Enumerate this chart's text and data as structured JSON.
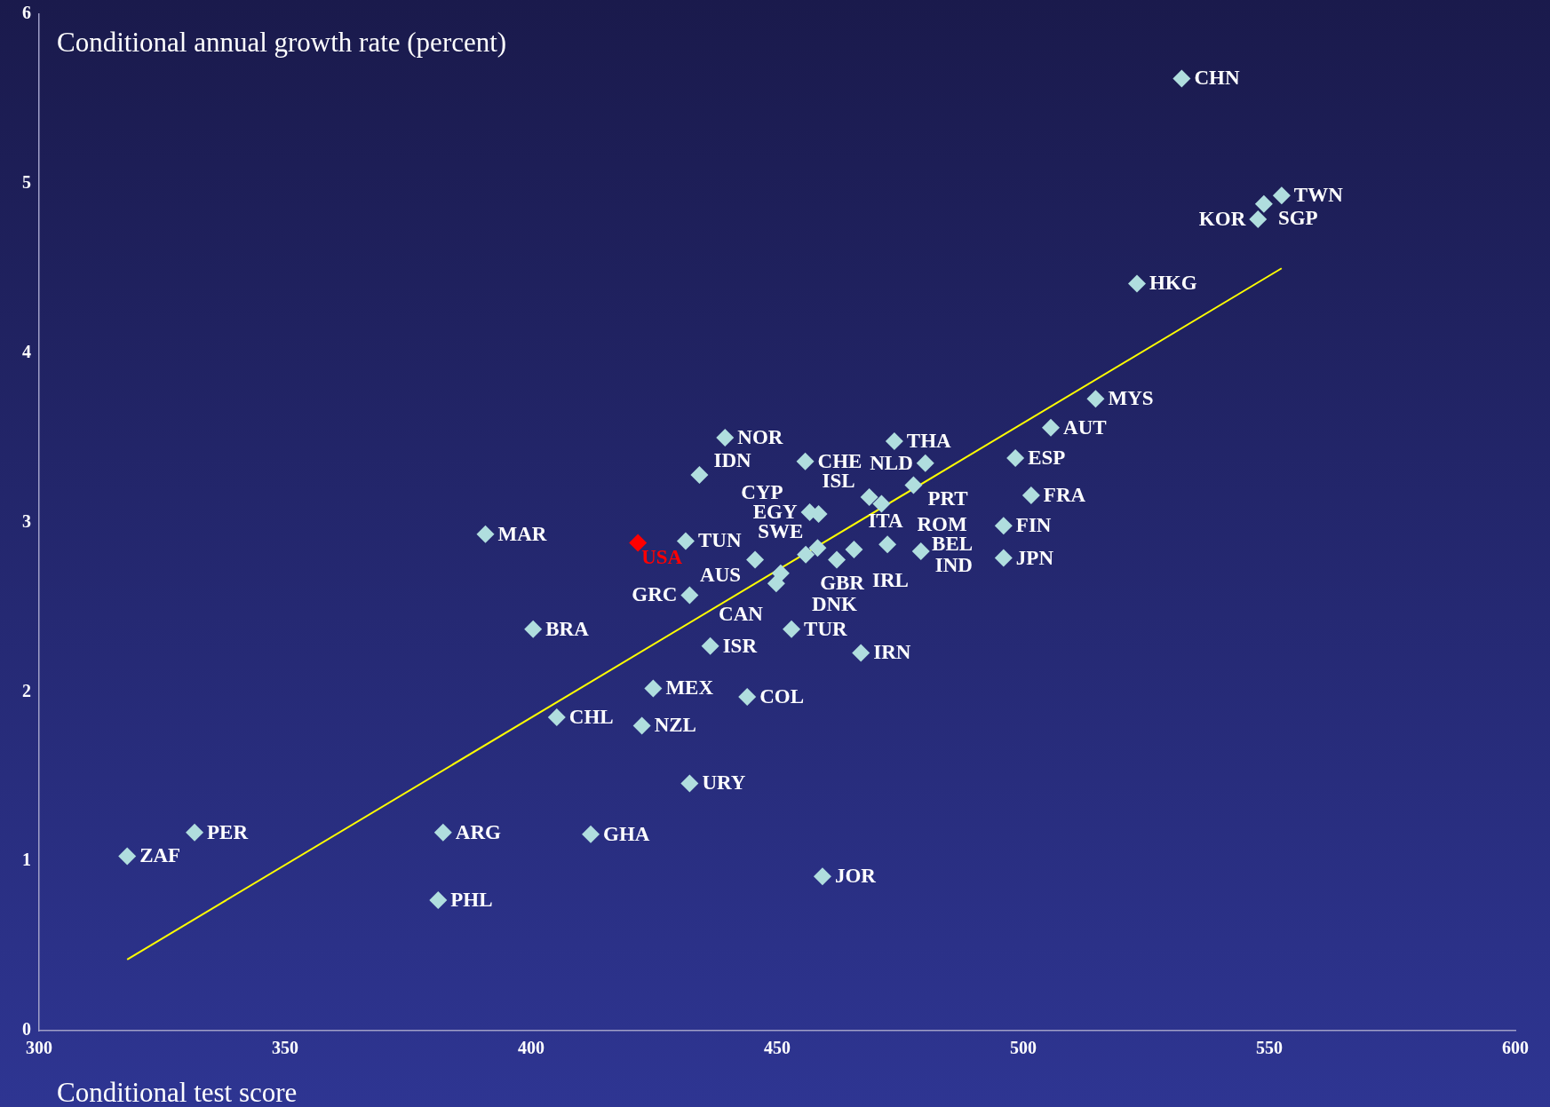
{
  "chart_data": {
    "type": "scatter",
    "xlabel": "Conditional test score",
    "ylabel": "Conditional annual growth rate (percent)",
    "xlim": [
      300,
      600
    ],
    "xticks": [
      300,
      350,
      400,
      450,
      500,
      550,
      600
    ],
    "ylim": [
      0,
      6
    ],
    "yticks": [
      0,
      1,
      2,
      3,
      4,
      5,
      6
    ],
    "grid": false,
    "legend": false,
    "marker": "diamond",
    "series": [
      {
        "color": "#b0dede",
        "x": [
          532.2,
          552.5,
          548.9,
          547.7,
          523.1,
          514.7,
          505.6,
          498.4,
          501.6,
          496.0,
          496.0,
          473.8,
          480.1,
          477.7,
          468.7,
          471.2,
          456.6,
          458.4,
          455.7,
          439.4,
          434.2,
          390.7,
          431.4,
          445.5,
          458.2,
          455.8,
          450.7,
          449.8,
          462.1,
          465.6,
          472.4,
          479.2,
          432.2,
          400.4,
          452.9,
          436.4,
          467.0,
          424.8,
          443.9,
          405.2,
          422.5,
          432.2,
          331.6,
          382.1,
          412.1,
          317.9,
          381.1,
          459.2
        ],
        "values": [
          5.62,
          4.93,
          4.88,
          4.79,
          4.41,
          3.73,
          3.56,
          3.38,
          3.16,
          2.98,
          2.79,
          3.48,
          3.35,
          3.22,
          3.15,
          3.11,
          3.06,
          3.05,
          3.36,
          3.5,
          3.28,
          2.93,
          2.89,
          2.78,
          2.85,
          2.81,
          2.7,
          2.64,
          2.78,
          2.84,
          2.87,
          2.83,
          2.57,
          2.37,
          2.37,
          2.27,
          2.23,
          2.02,
          1.97,
          1.85,
          1.8,
          1.46,
          1.17,
          1.17,
          1.16,
          1.03,
          0.77,
          0.91
        ]
      },
      {
        "name": "USA",
        "color": "#ff0000",
        "x": [
          421.7
        ],
        "values": [
          2.88
        ]
      },
      {
        "type": "line",
        "color": "#ffff00",
        "marker": "none",
        "x": [
          317.9,
          552.5
        ],
        "values": [
          0.42,
          4.5
        ]
      }
    ],
    "annotations": [
      {
        "text": "CHN",
        "x": 532.2,
        "y": 5.62
      },
      {
        "text": "TWN",
        "x": 552.5,
        "y": 4.93
      },
      {
        "text": "SGP",
        "x": 548.9,
        "y": 4.88
      },
      {
        "text": "KOR",
        "x": 547.7,
        "y": 4.79
      },
      {
        "text": "HKG",
        "x": 523.1,
        "y": 4.41
      },
      {
        "text": "MYS",
        "x": 514.7,
        "y": 3.73
      },
      {
        "text": "AUT",
        "x": 505.6,
        "y": 3.56
      },
      {
        "text": "ESP",
        "x": 498.4,
        "y": 3.38
      },
      {
        "text": "FRA",
        "x": 501.6,
        "y": 3.16
      },
      {
        "text": "FIN",
        "x": 496.0,
        "y": 2.98
      },
      {
        "text": "JPN",
        "x": 496.0,
        "y": 2.79
      },
      {
        "text": "THA",
        "x": 473.8,
        "y": 3.48
      },
      {
        "text": "NLD",
        "x": 480.1,
        "y": 3.35
      },
      {
        "text": "PRT",
        "x": 477.7,
        "y": 3.22
      },
      {
        "text": "ISL",
        "x": 468.7,
        "y": 3.15
      },
      {
        "text": "ROM",
        "x": 471.2,
        "y": 3.11
      },
      {
        "text": "EGY",
        "x": 456.6,
        "y": 3.06
      },
      {
        "text": "CYP",
        "x": 458.4,
        "y": 3.05
      },
      {
        "text": "CHE",
        "x": 455.7,
        "y": 3.36
      },
      {
        "text": "NOR",
        "x": 439.4,
        "y": 3.5
      },
      {
        "text": "IDN",
        "x": 434.2,
        "y": 3.28
      },
      {
        "text": "MAR",
        "x": 390.7,
        "y": 2.93
      },
      {
        "text": "TUN",
        "x": 431.4,
        "y": 2.89
      },
      {
        "text": "AUS",
        "x": 445.5,
        "y": 2.78
      },
      {
        "text": "SWE",
        "x": 458.2,
        "y": 2.85
      },
      {
        "text": "GBR",
        "x": 455.8,
        "y": 2.81
      },
      {
        "text": "CAN",
        "x": 450.7,
        "y": 2.7
      },
      {
        "text": "DNK",
        "x": 449.8,
        "y": 2.64
      },
      {
        "text": "IRL",
        "x": 462.1,
        "y": 2.78
      },
      {
        "text": "ITA",
        "x": 465.6,
        "y": 2.84
      },
      {
        "text": "BEL",
        "x": 472.4,
        "y": 2.87
      },
      {
        "text": "IND",
        "x": 479.2,
        "y": 2.83
      },
      {
        "text": "GRC",
        "x": 432.2,
        "y": 2.57
      },
      {
        "text": "BRA",
        "x": 400.4,
        "y": 2.37
      },
      {
        "text": "TUR",
        "x": 452.9,
        "y": 2.37
      },
      {
        "text": "ISR",
        "x": 436.4,
        "y": 2.27
      },
      {
        "text": "IRN",
        "x": 467.0,
        "y": 2.23
      },
      {
        "text": "MEX",
        "x": 424.8,
        "y": 2.02
      },
      {
        "text": "COL",
        "x": 443.9,
        "y": 1.97
      },
      {
        "text": "CHL",
        "x": 405.2,
        "y": 1.85
      },
      {
        "text": "NZL",
        "x": 422.5,
        "y": 1.8
      },
      {
        "text": "URY",
        "x": 432.2,
        "y": 1.46
      },
      {
        "text": "PER",
        "x": 331.6,
        "y": 1.17
      },
      {
        "text": "ARG",
        "x": 382.1,
        "y": 1.17
      },
      {
        "text": "GHA",
        "x": 412.1,
        "y": 1.16
      },
      {
        "text": "ZAF",
        "x": 317.9,
        "y": 1.03
      },
      {
        "text": "PHL",
        "x": 381.1,
        "y": 0.77
      },
      {
        "text": "JOR",
        "x": 459.2,
        "y": 0.91
      }
    ]
  }
}
